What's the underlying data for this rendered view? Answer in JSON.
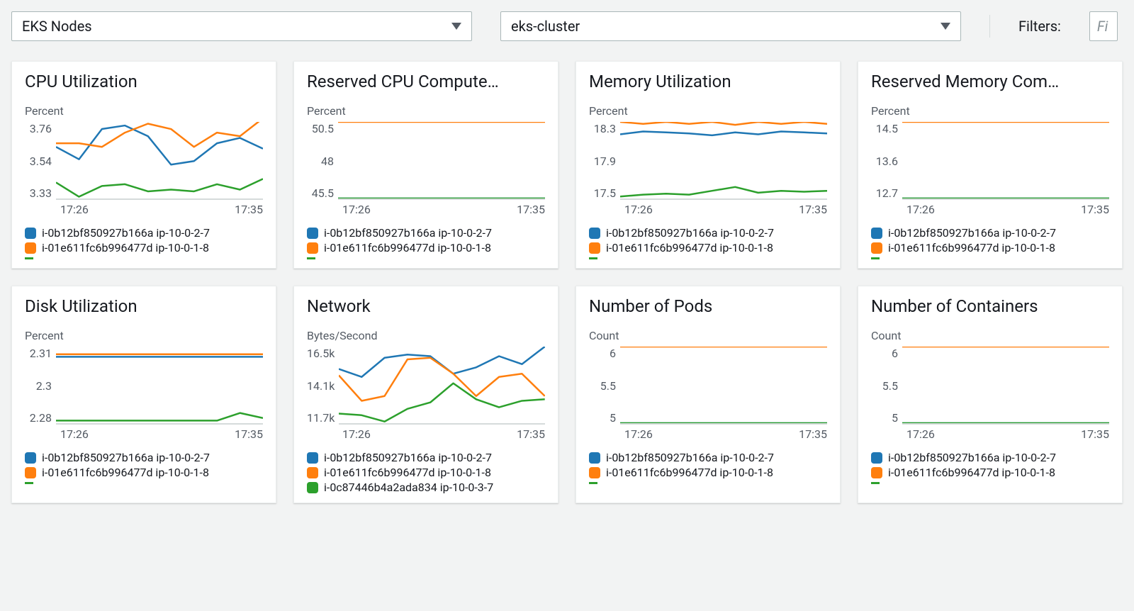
{
  "toolbar": {
    "resource_dropdown": {
      "value": "EKS Nodes"
    },
    "cluster_dropdown": {
      "value": "eks-cluster"
    },
    "filters_label": "Filters:",
    "filter_placeholder": "Fi"
  },
  "colors": {
    "series1": "#1f77b4",
    "series2": "#ff7f0e",
    "series3": "#2ca02c",
    "axis": "#d5dbdb",
    "text": "#545b64"
  },
  "legend_items": [
    {
      "label": "i-0b12bf850927b166a ip-10-0-2-7",
      "color": "#1f77b4"
    },
    {
      "label": "i-01e611fc6b996477d ip-10-0-1-8",
      "color": "#ff7f0e"
    }
  ],
  "legend_items_3": [
    {
      "label": "i-0b12bf850927b166a ip-10-0-2-7",
      "color": "#1f77b4"
    },
    {
      "label": "i-01e611fc6b996477d ip-10-0-1-8",
      "color": "#ff7f0e"
    },
    {
      "label": "i-0c87446b4a2ada834 ip-10-0-3-7",
      "color": "#2ca02c"
    }
  ],
  "x_ticks": [
    "17:26",
    "17:35"
  ],
  "charts": [
    {
      "id": "cpu-utilization",
      "title": "CPU Utilization",
      "ylabel": "Percent",
      "yticks": [
        "3.76",
        "3.54",
        "3.33"
      ],
      "ymin": 3.33,
      "ymax": 3.76,
      "legend": "2dash",
      "series": [
        {
          "color": "#1f77b4",
          "values": [
            3.62,
            3.55,
            3.72,
            3.74,
            3.68,
            3.52,
            3.54,
            3.64,
            3.67,
            3.61
          ]
        },
        {
          "color": "#ff7f0e",
          "values": [
            3.64,
            3.64,
            3.62,
            3.7,
            3.75,
            3.72,
            3.62,
            3.7,
            3.68,
            3.78
          ]
        },
        {
          "color": "#2ca02c",
          "values": [
            3.42,
            3.34,
            3.4,
            3.41,
            3.37,
            3.38,
            3.37,
            3.41,
            3.38,
            3.44
          ]
        }
      ]
    },
    {
      "id": "reserved-cpu",
      "title": "Reserved CPU Compute…",
      "ylabel": "Percent",
      "yticks": [
        "50.5",
        "48",
        "45.5"
      ],
      "ymin": 45.5,
      "ymax": 50.5,
      "legend": "2dash",
      "series": [
        {
          "color": "#ff7f0e",
          "values": [
            50.5,
            50.5,
            50.5,
            50.5,
            50.5,
            50.5,
            50.5,
            50.5,
            50.5,
            50.5
          ]
        },
        {
          "color": "#1f77b4",
          "values": [
            45.5,
            45.5,
            45.5,
            45.5,
            45.5,
            45.5,
            45.5,
            45.5,
            45.5,
            45.5
          ]
        },
        {
          "color": "#2ca02c",
          "values": [
            45.5,
            45.5,
            45.5,
            45.5,
            45.5,
            45.5,
            45.5,
            45.5,
            45.5,
            45.5
          ]
        }
      ]
    },
    {
      "id": "memory-utilization",
      "title": "Memory Utilization",
      "ylabel": "Percent",
      "yticks": [
        "18.3",
        "17.9",
        "17.5"
      ],
      "ymin": 17.5,
      "ymax": 18.3,
      "legend": "2dash",
      "series": [
        {
          "color": "#ff7f0e",
          "values": [
            18.3,
            18.28,
            18.3,
            18.28,
            18.3,
            18.27,
            18.3,
            18.28,
            18.3,
            18.28
          ]
        },
        {
          "color": "#1f77b4",
          "values": [
            18.17,
            18.2,
            18.19,
            18.18,
            18.16,
            18.19,
            18.17,
            18.2,
            18.19,
            18.18
          ]
        },
        {
          "color": "#2ca02c",
          "values": [
            17.52,
            17.54,
            17.55,
            17.54,
            17.58,
            17.62,
            17.56,
            17.58,
            17.57,
            17.58
          ]
        }
      ]
    },
    {
      "id": "reserved-memory",
      "title": "Reserved Memory Com…",
      "ylabel": "Percent",
      "yticks": [
        "14.5",
        "13.6",
        "12.7"
      ],
      "ymin": 12.7,
      "ymax": 14.5,
      "legend": "2dash",
      "series": [
        {
          "color": "#ff7f0e",
          "values": [
            14.5,
            14.5,
            14.5,
            14.5,
            14.5,
            14.5,
            14.5,
            14.5,
            14.5,
            14.5
          ]
        },
        {
          "color": "#1f77b4",
          "values": [
            12.7,
            12.7,
            12.7,
            12.7,
            12.7,
            12.7,
            12.7,
            12.7,
            12.7,
            12.7
          ]
        },
        {
          "color": "#2ca02c",
          "values": [
            12.7,
            12.7,
            12.7,
            12.7,
            12.7,
            12.7,
            12.7,
            12.7,
            12.7,
            12.7
          ]
        }
      ]
    },
    {
      "id": "disk-utilization",
      "title": "Disk Utilization",
      "ylabel": "Percent",
      "yticks": [
        "2.31",
        "2.3",
        "2.28"
      ],
      "ymin": 2.28,
      "ymax": 2.31,
      "legend": "2dash",
      "series": [
        {
          "color": "#ff7f0e",
          "values": [
            2.307,
            2.307,
            2.307,
            2.307,
            2.307,
            2.307,
            2.307,
            2.307,
            2.307,
            2.307
          ]
        },
        {
          "color": "#1f77b4",
          "values": [
            2.306,
            2.306,
            2.306,
            2.306,
            2.306,
            2.306,
            2.306,
            2.306,
            2.306,
            2.306
          ]
        },
        {
          "color": "#2ca02c",
          "values": [
            2.281,
            2.281,
            2.281,
            2.281,
            2.281,
            2.281,
            2.281,
            2.281,
            2.284,
            2.282
          ]
        }
      ]
    },
    {
      "id": "network",
      "title": "Network",
      "ylabel": "Bytes/Second",
      "yticks": [
        "16.5k",
        "14.1k",
        "11.7k"
      ],
      "ymin": 11.7,
      "ymax": 16.5,
      "legend": "3",
      "series": [
        {
          "color": "#1f77b4",
          "values": [
            15.1,
            14.6,
            15.8,
            16.0,
            15.9,
            14.8,
            15.2,
            15.9,
            15.4,
            16.5
          ]
        },
        {
          "color": "#ff7f0e",
          "values": [
            14.7,
            13.1,
            13.4,
            15.7,
            15.8,
            14.8,
            13.4,
            14.6,
            14.8,
            13.4
          ]
        },
        {
          "color": "#2ca02c",
          "values": [
            12.3,
            12.2,
            11.8,
            12.6,
            13.0,
            14.2,
            13.2,
            12.7,
            13.1,
            13.2
          ]
        }
      ]
    },
    {
      "id": "pods",
      "title": "Number of Pods",
      "ylabel": "Count",
      "yticks": [
        "6",
        "5.5",
        "5"
      ],
      "ymin": 5,
      "ymax": 6,
      "legend": "2dash",
      "series": [
        {
          "color": "#ff7f0e",
          "values": [
            6,
            6,
            6,
            6,
            6,
            6,
            6,
            6,
            6,
            6
          ]
        },
        {
          "color": "#1f77b4",
          "values": [
            5,
            5,
            5,
            5,
            5,
            5,
            5,
            5,
            5,
            5
          ]
        },
        {
          "color": "#2ca02c",
          "values": [
            5,
            5,
            5,
            5,
            5,
            5,
            5,
            5,
            5,
            5
          ]
        }
      ]
    },
    {
      "id": "containers",
      "title": "Number of Containers",
      "ylabel": "Count",
      "yticks": [
        "6",
        "5.5",
        "5"
      ],
      "ymin": 5,
      "ymax": 6,
      "legend": "2dash",
      "series": [
        {
          "color": "#ff7f0e",
          "values": [
            6,
            6,
            6,
            6,
            6,
            6,
            6,
            6,
            6,
            6
          ]
        },
        {
          "color": "#1f77b4",
          "values": [
            5,
            5,
            5,
            5,
            5,
            5,
            5,
            5,
            5,
            5
          ]
        },
        {
          "color": "#2ca02c",
          "values": [
            5,
            5,
            5,
            5,
            5,
            5,
            5,
            5,
            5,
            5
          ]
        }
      ]
    }
  ]
}
